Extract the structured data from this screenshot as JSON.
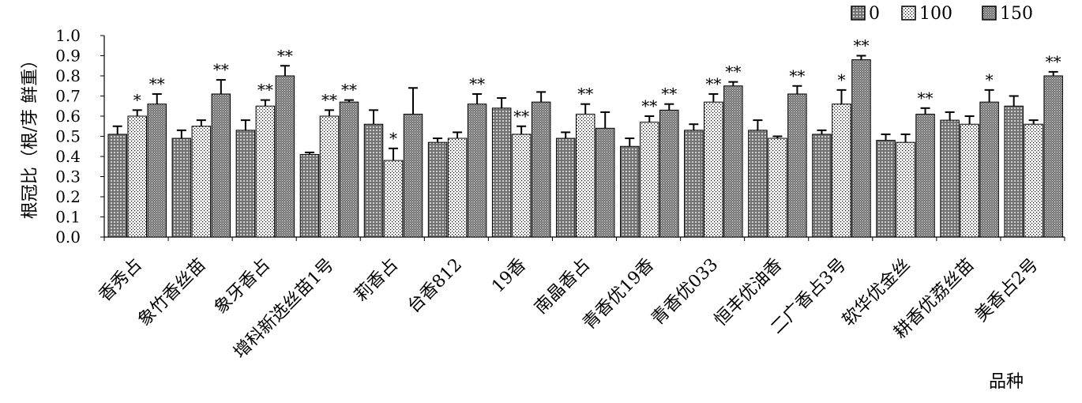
{
  "chart_data": {
    "type": "bar",
    "title": "",
    "ylabel": "根冠比（根/芽 鲜重）",
    "xlabel": "品种",
    "ylim": [
      0,
      1.0
    ],
    "yticks": [
      "0.0",
      "0.1",
      "0.2",
      "0.3",
      "0.4",
      "0.5",
      "0.6",
      "0.7",
      "0.8",
      "0.9",
      "1.0"
    ],
    "legend_position": "top-right",
    "categories": [
      "香秀占",
      "象竹香丝苗",
      "象牙香占",
      "增科新选丝苗1号",
      "莉香占",
      "台香812",
      "19香",
      "南晶香占",
      "青香优19香",
      "青香优033",
      "恒丰优油香",
      "二广香占3号",
      "软华优金丝",
      "耕香优荔丝苗",
      "美香占2号"
    ],
    "series": [
      {
        "name": "0",
        "pattern": "grid",
        "values": [
          0.51,
          0.49,
          0.53,
          0.41,
          0.56,
          0.47,
          0.64,
          0.49,
          0.45,
          0.53,
          0.53,
          0.51,
          0.48,
          0.58,
          0.65
        ],
        "errors": [
          0.04,
          0.04,
          0.05,
          0.01,
          0.07,
          0.02,
          0.05,
          0.03,
          0.04,
          0.03,
          0.05,
          0.02,
          0.03,
          0.04,
          0.05
        ],
        "marks": [
          "",
          "",
          "",
          "",
          "",
          "",
          "",
          "",
          "",
          "",
          "",
          "",
          "",
          "",
          ""
        ]
      },
      {
        "name": "100",
        "pattern": "dots",
        "values": [
          0.6,
          0.55,
          0.65,
          0.6,
          0.38,
          0.49,
          0.51,
          0.61,
          0.57,
          0.67,
          0.49,
          0.66,
          0.47,
          0.56,
          0.56
        ],
        "errors": [
          0.03,
          0.03,
          0.03,
          0.03,
          0.06,
          0.03,
          0.04,
          0.05,
          0.03,
          0.04,
          0.01,
          0.07,
          0.04,
          0.04,
          0.02
        ],
        "marks": [
          "*",
          "",
          "**",
          "**",
          "*",
          "",
          "**",
          "**",
          "**",
          "**",
          "",
          "*",
          "",
          "",
          ""
        ]
      },
      {
        "name": "150",
        "pattern": "dense",
        "values": [
          0.66,
          0.71,
          0.8,
          0.67,
          0.61,
          0.66,
          0.67,
          0.54,
          0.63,
          0.75,
          0.71,
          0.88,
          0.61,
          0.67,
          0.8
        ],
        "errors": [
          0.05,
          0.07,
          0.05,
          0.01,
          0.13,
          0.05,
          0.05,
          0.08,
          0.03,
          0.02,
          0.04,
          0.02,
          0.03,
          0.06,
          0.02
        ],
        "marks": [
          "**",
          "**",
          "**",
          "**",
          "",
          "**",
          "",
          "",
          "**",
          "**",
          "**",
          "**",
          "**",
          "*",
          "**"
        ]
      }
    ]
  }
}
